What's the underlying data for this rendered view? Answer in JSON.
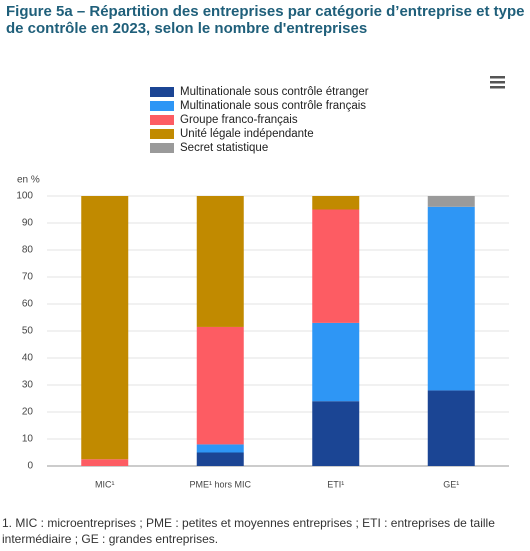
{
  "chart_data": {
    "type": "stacked_bar",
    "title": "Figure 5a – Répartition des entreprises par catégorie d’entreprise et type de contrôle en 2023, selon le nombre d'entreprises",
    "y_label": "en %",
    "footnote": "1. MIC : microentreprises ; PME : petites et moyennes entreprises ; ETI : entreprises de taille intermédiaire ; GE : grandes entreprises.",
    "categories": [
      "MIC¹",
      "PME¹ hors MIC",
      "ETI¹",
      "GE¹"
    ],
    "series": [
      {
        "name": "Multinationale sous contrôle étranger",
        "color": "#1b4594",
        "values": [
          0,
          5,
          24,
          28
        ]
      },
      {
        "name": "Multinationale sous contrôle français",
        "color": "#2e96f5",
        "values": [
          0,
          3,
          29,
          68
        ]
      },
      {
        "name": "Groupe franco-français",
        "color": "#fd5c63",
        "values": [
          2.5,
          43.5,
          42,
          0
        ]
      },
      {
        "name": "Unité légale indépendante",
        "color": "#c18a00",
        "values": [
          97.5,
          48.5,
          5,
          0
        ]
      },
      {
        "name": "Secret statistique",
        "color": "#9a9a9a",
        "values": [
          0,
          0,
          0,
          4
        ]
      }
    ],
    "ylim": [
      0,
      100
    ],
    "yticks": [
      0,
      10,
      20,
      30,
      40,
      50,
      60,
      70,
      80,
      90,
      100
    ],
    "grid": true
  }
}
